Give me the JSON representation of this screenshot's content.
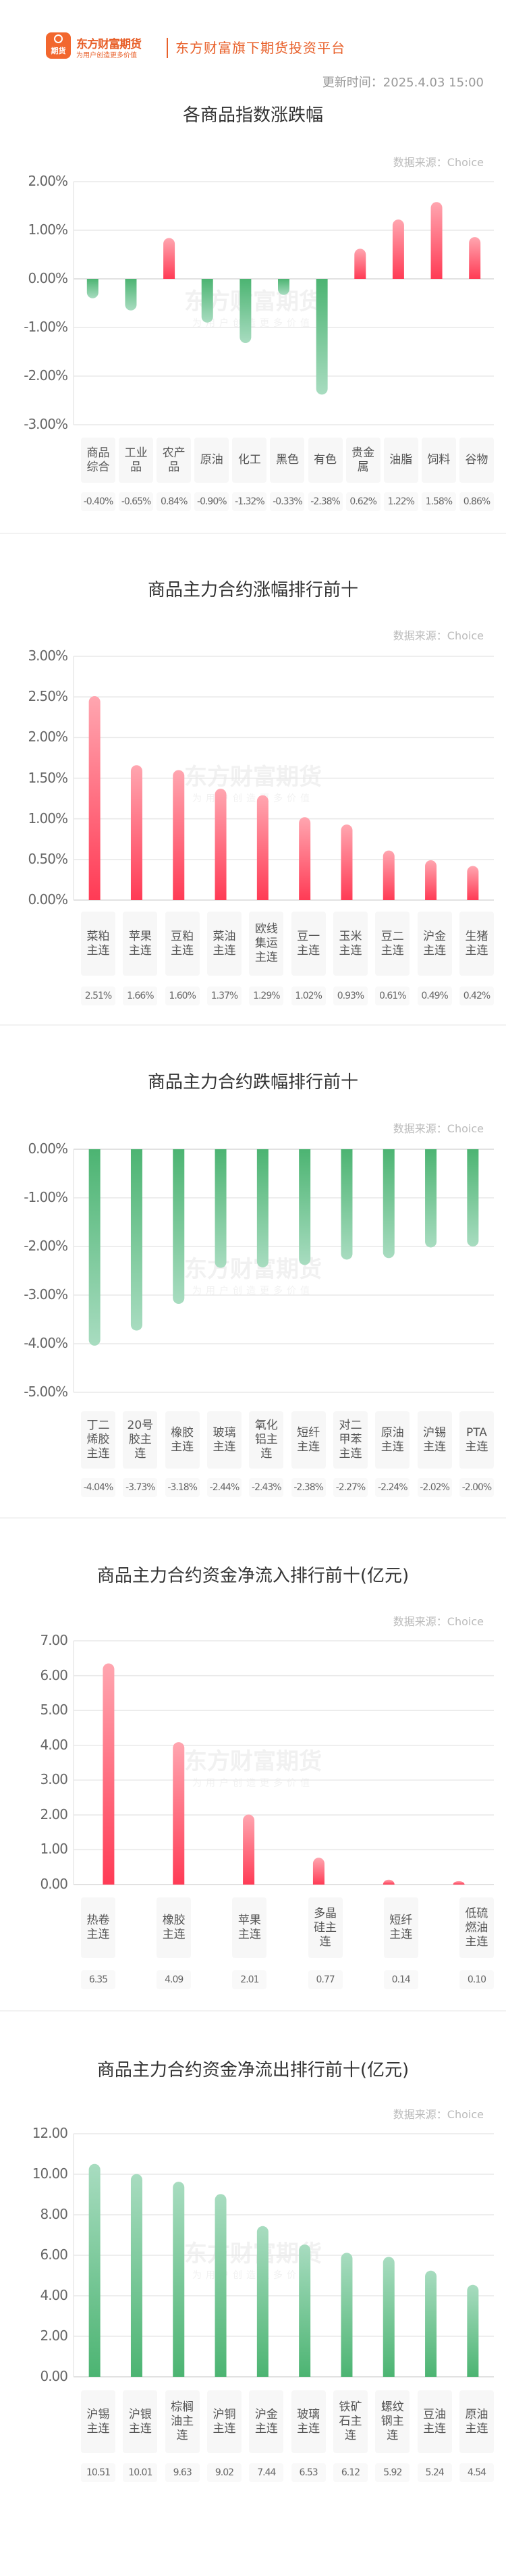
{
  "header": {
    "logo_icon_text": "期货",
    "logo_name": "东方财富期货",
    "logo_slogan": "为用户创造更多价值",
    "platform": "东方财富旗下期货投资平台",
    "update_time": "更新时间：2025.4.03 15:00"
  },
  "watermark": {
    "name": "东方财富期货",
    "slogan": "为用户创造更多价值"
  },
  "colors": {
    "brand": "#e8602a",
    "up_dark": "#ff3b55",
    "up_light": "#ffa6b0",
    "down_dark": "#4cb472",
    "down_light": "#a8dcc0"
  },
  "chart_data": [
    {
      "type": "bar",
      "title": "各商品指数涨跌幅",
      "source": "数据来源：Choice",
      "ylim": [
        -3,
        2
      ],
      "yticks": [
        2,
        1,
        0,
        -1,
        -2,
        -3
      ],
      "ytick_labels": [
        "2.00%",
        "1.00%",
        "0.00%",
        "-1.00%",
        "-2.00%",
        "-3.00%"
      ],
      "categories": [
        "商品\n综合",
        "工业\n品",
        "农产\n品",
        "原油",
        "化工",
        "黑色",
        "有色",
        "贵金\n属",
        "油脂",
        "饲料",
        "谷物"
      ],
      "values": [
        -0.4,
        -0.65,
        0.84,
        -0.9,
        -1.32,
        -0.33,
        -2.38,
        0.62,
        1.22,
        1.58,
        0.86
      ],
      "value_labels": [
        "-0.40%",
        "-0.65%",
        "0.84%",
        "-0.90%",
        "-1.32%",
        "-0.33%",
        "-2.38%",
        "0.62%",
        "1.22%",
        "1.58%",
        "0.86%"
      ]
    },
    {
      "type": "bar",
      "title": "商品主力合约涨幅排行前十",
      "source": "数据来源：Choice",
      "ylim": [
        0,
        3
      ],
      "yticks": [
        3,
        2.5,
        2,
        1.5,
        1,
        0.5,
        0
      ],
      "ytick_labels": [
        "3.00%",
        "2.50%",
        "2.00%",
        "1.50%",
        "1.00%",
        "0.50%",
        "0.00%"
      ],
      "categories": [
        "菜粕\n主连",
        "苹果\n主连",
        "豆粕\n主连",
        "菜油\n主连",
        "欧线\n集运\n主连",
        "豆一\n主连",
        "玉米\n主连",
        "豆二\n主连",
        "沪金\n主连",
        "生猪\n主连"
      ],
      "values": [
        2.51,
        1.66,
        1.6,
        1.37,
        1.29,
        1.02,
        0.93,
        0.61,
        0.49,
        0.42
      ],
      "value_labels": [
        "2.51%",
        "1.66%",
        "1.60%",
        "1.37%",
        "1.29%",
        "1.02%",
        "0.93%",
        "0.61%",
        "0.49%",
        "0.42%"
      ]
    },
    {
      "type": "bar",
      "title": "商品主力合约跌幅排行前十",
      "source": "数据来源：Choice",
      "ylim": [
        -5,
        0
      ],
      "yticks": [
        0,
        -1,
        -2,
        -3,
        -4,
        -5
      ],
      "ytick_labels": [
        "0.00%",
        "-1.00%",
        "-2.00%",
        "-3.00%",
        "-4.00%",
        "-5.00%"
      ],
      "categories": [
        "丁二\n烯胶\n主连",
        "20号\n胶主\n连",
        "橡胶\n主连",
        "玻璃\n主连",
        "氧化\n铝主\n连",
        "短纤\n主连",
        "对二\n甲苯\n主连",
        "原油\n主连",
        "沪锡\n主连",
        "PTA\n主连"
      ],
      "values": [
        -4.04,
        -3.73,
        -3.18,
        -2.44,
        -2.43,
        -2.38,
        -2.27,
        -2.24,
        -2.02,
        -2.0
      ],
      "value_labels": [
        "-4.04%",
        "-3.73%",
        "-3.18%",
        "-2.44%",
        "-2.43%",
        "-2.38%",
        "-2.27%",
        "-2.24%",
        "-2.02%",
        "-2.00%"
      ]
    },
    {
      "type": "bar",
      "title": "商品主力合约资金净流入排行前十(亿元)",
      "source": "数据来源：Choice",
      "ylim": [
        0,
        7
      ],
      "yticks": [
        7,
        6,
        5,
        4,
        3,
        2,
        1,
        0
      ],
      "ytick_labels": [
        "7.00",
        "6.00",
        "5.00",
        "4.00",
        "3.00",
        "2.00",
        "1.00",
        "0.00"
      ],
      "categories": [
        "热卷\n主连",
        "橡胶\n主连",
        "苹果\n主连",
        "多晶\n硅主\n连",
        "短纤\n主连",
        "低硫\n燃油\n主连"
      ],
      "values": [
        6.35,
        4.09,
        2.01,
        0.77,
        0.14,
        0.1
      ],
      "value_labels": [
        "6.35",
        "4.09",
        "2.01",
        "0.77",
        "0.14",
        "0.10"
      ]
    },
    {
      "type": "bar",
      "title": "商品主力合约资金净流出排行前十(亿元)",
      "source": "数据来源：Choice",
      "ylim": [
        0,
        12
      ],
      "yticks": [
        12,
        10,
        8,
        6,
        4,
        2,
        0
      ],
      "ytick_labels": [
        "12.00",
        "10.00",
        "8.00",
        "6.00",
        "4.00",
        "2.00",
        "0.00"
      ],
      "categories": [
        "沪锡\n主连",
        "沪银\n主连",
        "棕榈\n油主\n连",
        "沪铜\n主连",
        "沪金\n主连",
        "玻璃\n主连",
        "铁矿\n石主\n连",
        "螺纹\n钢主\n连",
        "豆油\n主连",
        "原油\n主连"
      ],
      "values": [
        10.51,
        10.01,
        9.63,
        9.02,
        7.44,
        6.53,
        6.12,
        5.92,
        5.24,
        4.54
      ],
      "value_labels": [
        "10.51",
        "10.01",
        "9.63",
        "9.02",
        "7.44",
        "6.53",
        "6.12",
        "5.92",
        "5.24",
        "4.54"
      ]
    }
  ]
}
